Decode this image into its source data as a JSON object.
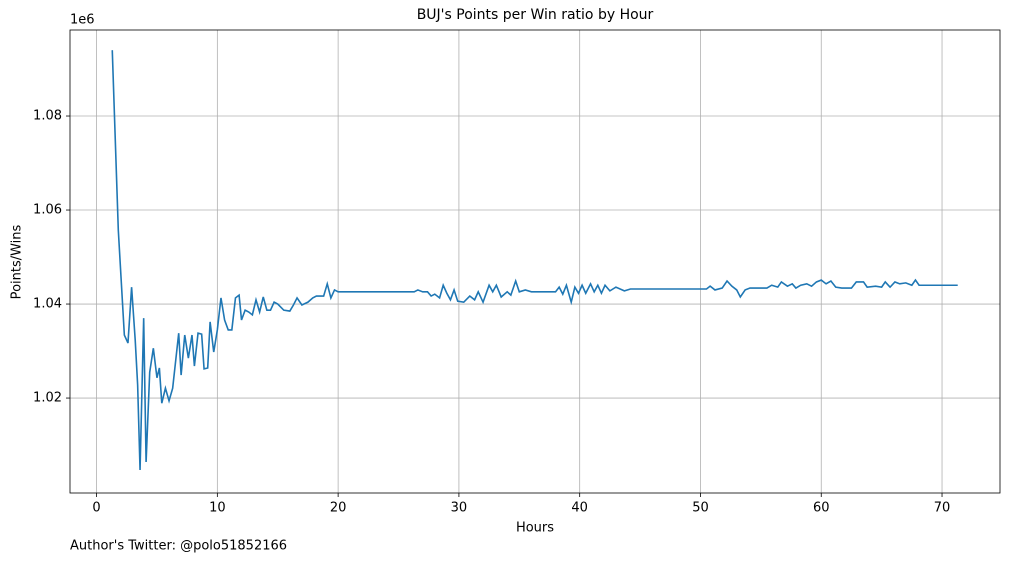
{
  "chart_data": {
    "type": "line",
    "title": "BUJ's Points per Win ratio by Hour",
    "x_label": "Hours",
    "y_label": "Points/Wins",
    "y_offset_label": "1e6",
    "footnote": "Author's Twitter: @polo51852166",
    "grid": true,
    "xlim": [
      -2.2,
      74.8
    ],
    "ylim": [
      999800,
      1098300
    ],
    "xticks": [
      0,
      10,
      20,
      30,
      40,
      50,
      60,
      70
    ],
    "yticks": [
      {
        "value": 1020000,
        "label": "1.02"
      },
      {
        "value": 1040000,
        "label": "1.04"
      },
      {
        "value": 1060000,
        "label": "1.06"
      },
      {
        "value": 1080000,
        "label": "1.08"
      }
    ],
    "x": [
      1.3,
      1.8,
      2.3,
      2.6,
      2.9,
      3.2,
      3.4,
      3.6,
      3.9,
      4.1,
      4.4,
      4.7,
      5.0,
      5.2,
      5.4,
      5.7,
      6.0,
      6.3,
      6.8,
      7.0,
      7.3,
      7.6,
      7.9,
      8.1,
      8.4,
      8.7,
      8.9,
      9.2,
      9.4,
      9.7,
      10.0,
      10.3,
      10.6,
      10.9,
      11.2,
      11.5,
      11.8,
      12.0,
      12.3,
      12.6,
      12.9,
      13.2,
      13.5,
      13.8,
      14.1,
      14.4,
      14.7,
      15.0,
      15.5,
      16.0,
      16.3,
      16.6,
      17.0,
      17.5,
      17.9,
      18.2,
      18.8,
      19.1,
      19.4,
      19.7,
      20.0,
      26.3,
      26.6,
      27.0,
      27.4,
      27.7,
      28.0,
      28.4,
      28.7,
      29.0,
      29.3,
      29.6,
      29.9,
      30.4,
      30.9,
      31.3,
      31.6,
      32.0,
      32.5,
      32.8,
      33.1,
      33.5,
      34.0,
      34.3,
      34.7,
      35.0,
      35.5,
      36.0,
      38.0,
      38.3,
      38.6,
      38.9,
      39.3,
      39.6,
      39.9,
      40.2,
      40.5,
      40.9,
      41.2,
      41.5,
      41.8,
      42.1,
      42.5,
      43.0,
      43.7,
      44.2,
      50.5,
      50.8,
      51.2,
      51.8,
      52.2,
      52.6,
      53.0,
      53.3,
      53.7,
      54.1,
      55.5,
      55.9,
      56.4,
      56.7,
      57.2,
      57.6,
      57.9,
      58.3,
      58.8,
      59.2,
      59.6,
      60.0,
      60.4,
      60.8,
      61.2,
      61.7,
      62.5,
      62.9,
      63.5,
      63.8,
      64.5,
      65.0,
      65.3,
      65.7,
      66.1,
      66.5,
      67.0,
      67.5,
      67.8,
      68.1,
      71.3
    ],
    "series": [
      {
        "name": "Points/Wins",
        "color": "#1f77b4",
        "values": [
          1094000,
          1055700,
          1033400,
          1031700,
          1043600,
          1032300,
          1022800,
          1004700,
          1037000,
          1006400,
          1025500,
          1030600,
          1024300,
          1026400,
          1018900,
          1022100,
          1019400,
          1022100,
          1033800,
          1024900,
          1033400,
          1028500,
          1033400,
          1026800,
          1033800,
          1033600,
          1026200,
          1026400,
          1036200,
          1029800,
          1034500,
          1041300,
          1036600,
          1034500,
          1034500,
          1041300,
          1041900,
          1036600,
          1038700,
          1038300,
          1037700,
          1040900,
          1038300,
          1041500,
          1038700,
          1038700,
          1040400,
          1040000,
          1038700,
          1038500,
          1039800,
          1041300,
          1039800,
          1040400,
          1041300,
          1041700,
          1041700,
          1044300,
          1041300,
          1043000,
          1042600,
          1042600,
          1043000,
          1042600,
          1042600,
          1041700,
          1042100,
          1041300,
          1044000,
          1042300,
          1040900,
          1043000,
          1040600,
          1040400,
          1041700,
          1040900,
          1042600,
          1040400,
          1044000,
          1042600,
          1044000,
          1041500,
          1042600,
          1041900,
          1044900,
          1042600,
          1043000,
          1042600,
          1042600,
          1043600,
          1042100,
          1044000,
          1040400,
          1043600,
          1042300,
          1044000,
          1042300,
          1044300,
          1042600,
          1044000,
          1042300,
          1044000,
          1042800,
          1043600,
          1042800,
          1043200,
          1043200,
          1043800,
          1043000,
          1043400,
          1044900,
          1043800,
          1043000,
          1041500,
          1043000,
          1043400,
          1043400,
          1044000,
          1043600,
          1044700,
          1043800,
          1044300,
          1043400,
          1044000,
          1044300,
          1043800,
          1044700,
          1045100,
          1044300,
          1044900,
          1043600,
          1043400,
          1043400,
          1044700,
          1044700,
          1043600,
          1043800,
          1043600,
          1044700,
          1043600,
          1044700,
          1044300,
          1044500,
          1044000,
          1045100,
          1044000,
          1044000
        ]
      }
    ]
  }
}
